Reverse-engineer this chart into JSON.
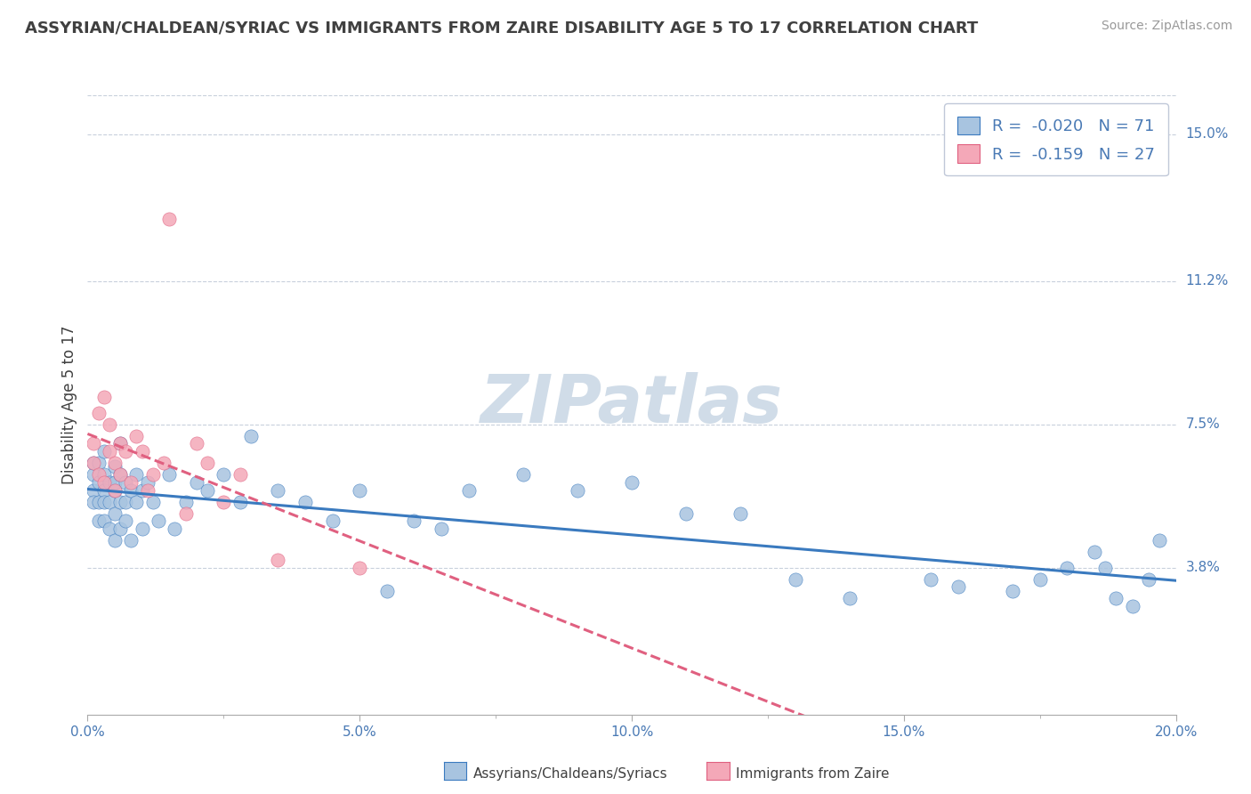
{
  "title": "ASSYRIAN/CHALDEAN/SYRIAC VS IMMIGRANTS FROM ZAIRE DISABILITY AGE 5 TO 17 CORRELATION CHART",
  "source": "Source: ZipAtlas.com",
  "ylabel": "Disability Age 5 to 17",
  "legend_label_blue": "Assyrians/Chaldeans/Syriacs",
  "legend_label_pink": "Immigrants from Zaire",
  "R_blue": -0.02,
  "N_blue": 71,
  "R_pink": -0.159,
  "N_pink": 27,
  "xlim": [
    0.0,
    0.2
  ],
  "ylim": [
    0.0,
    0.16
  ],
  "xtick_labels": [
    "0.0%",
    "",
    "5.0%",
    "",
    "10.0%",
    "",
    "15.0%",
    "",
    "20.0%"
  ],
  "xtick_vals": [
    0.0,
    0.025,
    0.05,
    0.075,
    0.1,
    0.125,
    0.15,
    0.175,
    0.2
  ],
  "ytick_right_labels": [
    "3.8%",
    "7.5%",
    "11.2%",
    "15.0%"
  ],
  "ytick_right_vals": [
    0.038,
    0.075,
    0.112,
    0.15
  ],
  "color_blue": "#a8c4e0",
  "color_pink": "#f4a8b8",
  "line_color_blue": "#3a7abf",
  "line_color_pink": "#e06080",
  "background_color": "#ffffff",
  "grid_color": "#c8d0dc",
  "title_color": "#404040",
  "watermark_color": "#d0dce8",
  "blue_scatter_x": [
    0.001,
    0.001,
    0.001,
    0.001,
    0.002,
    0.002,
    0.002,
    0.002,
    0.003,
    0.003,
    0.003,
    0.003,
    0.003,
    0.004,
    0.004,
    0.004,
    0.005,
    0.005,
    0.005,
    0.005,
    0.005,
    0.006,
    0.006,
    0.006,
    0.006,
    0.007,
    0.007,
    0.007,
    0.008,
    0.008,
    0.009,
    0.009,
    0.01,
    0.01,
    0.011,
    0.012,
    0.013,
    0.015,
    0.016,
    0.018,
    0.02,
    0.022,
    0.025,
    0.028,
    0.03,
    0.035,
    0.04,
    0.045,
    0.05,
    0.055,
    0.06,
    0.065,
    0.07,
    0.08,
    0.09,
    0.1,
    0.11,
    0.12,
    0.13,
    0.14,
    0.155,
    0.16,
    0.17,
    0.175,
    0.18,
    0.185,
    0.187,
    0.189,
    0.192,
    0.195,
    0.197
  ],
  "blue_scatter_y": [
    0.058,
    0.062,
    0.065,
    0.055,
    0.06,
    0.05,
    0.065,
    0.055,
    0.058,
    0.062,
    0.05,
    0.068,
    0.055,
    0.055,
    0.06,
    0.048,
    0.052,
    0.058,
    0.064,
    0.045,
    0.06,
    0.055,
    0.062,
    0.048,
    0.07,
    0.055,
    0.06,
    0.05,
    0.045,
    0.058,
    0.055,
    0.062,
    0.058,
    0.048,
    0.06,
    0.055,
    0.05,
    0.062,
    0.048,
    0.055,
    0.06,
    0.058,
    0.062,
    0.055,
    0.072,
    0.058,
    0.055,
    0.05,
    0.058,
    0.032,
    0.05,
    0.048,
    0.058,
    0.062,
    0.058,
    0.06,
    0.052,
    0.052,
    0.035,
    0.03,
    0.035,
    0.033,
    0.032,
    0.035,
    0.038,
    0.042,
    0.038,
    0.03,
    0.028,
    0.035,
    0.045
  ],
  "pink_scatter_x": [
    0.001,
    0.001,
    0.002,
    0.002,
    0.003,
    0.003,
    0.004,
    0.004,
    0.005,
    0.005,
    0.006,
    0.006,
    0.007,
    0.008,
    0.009,
    0.01,
    0.011,
    0.012,
    0.014,
    0.015,
    0.018,
    0.02,
    0.022,
    0.025,
    0.028,
    0.035,
    0.05
  ],
  "pink_scatter_y": [
    0.065,
    0.07,
    0.078,
    0.062,
    0.082,
    0.06,
    0.068,
    0.075,
    0.058,
    0.065,
    0.07,
    0.062,
    0.068,
    0.06,
    0.072,
    0.068,
    0.058,
    0.062,
    0.065,
    0.128,
    0.052,
    0.07,
    0.065,
    0.055,
    0.062,
    0.04,
    0.038
  ]
}
